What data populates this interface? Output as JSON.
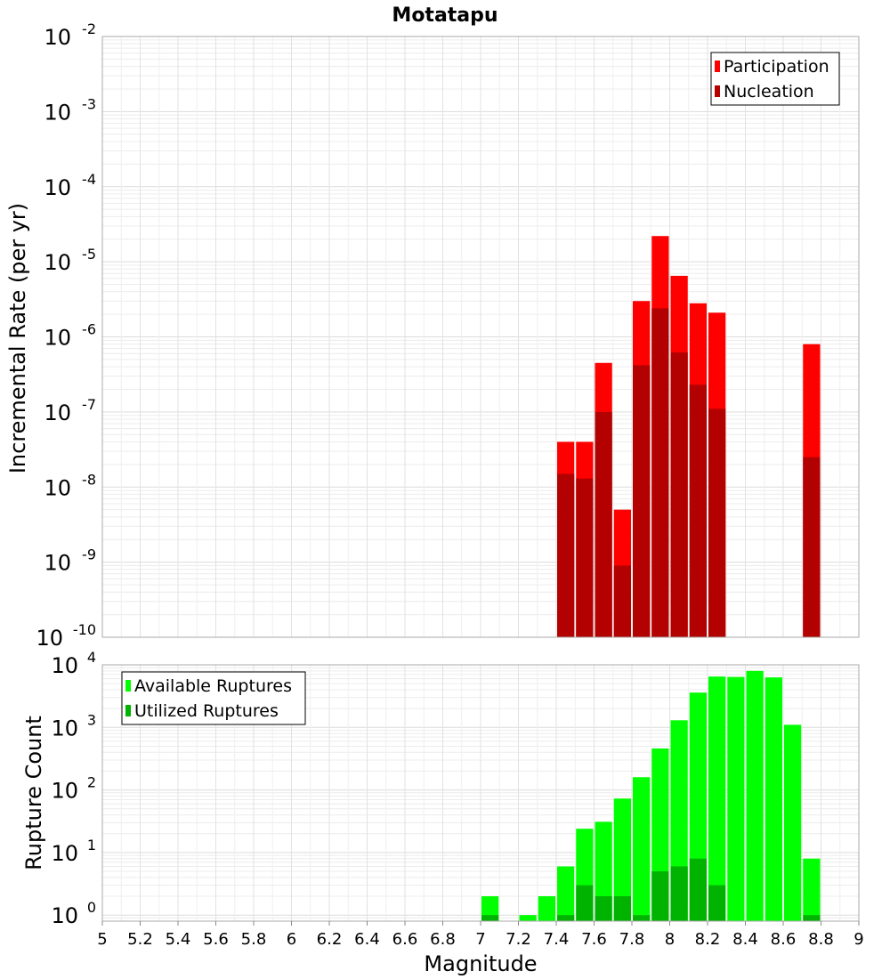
{
  "chart_data": [
    {
      "type": "bar",
      "title": "Motatapu",
      "ylabel": "Incremental Rate (per yr)",
      "xlabel": "",
      "y_scale": "log",
      "ylim": [
        1e-10,
        0.01
      ],
      "xlim": [
        5,
        9
      ],
      "grid": true,
      "legend_position": "top-right",
      "x": [
        7.45,
        7.55,
        7.65,
        7.75,
        7.85,
        7.95,
        8.05,
        8.15,
        8.25,
        8.75
      ],
      "series": [
        {
          "name": "Participation",
          "color": "#ff0000",
          "values": [
            4e-08,
            4e-08,
            4.5e-07,
            5e-09,
            3e-06,
            2.2e-05,
            6.5e-06,
            2.8e-06,
            2.1e-06,
            8e-07
          ]
        },
        {
          "name": "Nucleation",
          "color": "#b30000",
          "values": [
            1.5e-08,
            1.3e-08,
            1e-07,
            9e-10,
            4.2e-07,
            2.4e-06,
            6.2e-07,
            2.3e-07,
            1.1e-07,
            2.5e-08
          ]
        }
      ],
      "y_ticks": [
        {
          "base": "10",
          "exp": "-10",
          "value": 1e-10
        },
        {
          "base": "10",
          "exp": "-9",
          "value": 1e-09
        },
        {
          "base": "10",
          "exp": "-8",
          "value": 1e-08
        },
        {
          "base": "10",
          "exp": "-7",
          "value": 1e-07
        },
        {
          "base": "10",
          "exp": "-6",
          "value": 1e-06
        },
        {
          "base": "10",
          "exp": "-5",
          "value": 1e-05
        },
        {
          "base": "10",
          "exp": "-4",
          "value": 0.0001
        },
        {
          "base": "10",
          "exp": "-3",
          "value": 0.001
        },
        {
          "base": "10",
          "exp": "-2",
          "value": 0.01
        }
      ]
    },
    {
      "type": "bar",
      "title": "",
      "ylabel": "Rupture Count",
      "xlabel": "Magnitude",
      "y_scale": "log",
      "ylim": [
        0.8,
        10000
      ],
      "xlim": [
        5,
        9
      ],
      "grid": true,
      "legend_position": "top-left",
      "x": [
        7.05,
        7.25,
        7.35,
        7.45,
        7.55,
        7.65,
        7.75,
        7.85,
        7.95,
        8.05,
        8.15,
        8.25,
        8.35,
        8.45,
        8.55,
        8.65,
        8.75
      ],
      "series": [
        {
          "name": "Available Ruptures",
          "color": "#00ff00",
          "values": [
            2,
            1,
            2,
            6,
            24,
            31,
            73,
            160,
            460,
            1300,
            3600,
            6500,
            6400,
            8000,
            6300,
            1100,
            8
          ]
        },
        {
          "name": "Utilized Ruptures",
          "color": "#00b300",
          "values": [
            1,
            0,
            0,
            1,
            3,
            2,
            2,
            1,
            5,
            6,
            8,
            3,
            0,
            0,
            0,
            0,
            1
          ]
        }
      ],
      "y_ticks": [
        {
          "base": "10",
          "exp": "0",
          "value": 1
        },
        {
          "base": "10",
          "exp": "1",
          "value": 10
        },
        {
          "base": "10",
          "exp": "2",
          "value": 100
        },
        {
          "base": "10",
          "exp": "3",
          "value": 1000
        },
        {
          "base": "10",
          "exp": "4",
          "value": 10000
        }
      ],
      "x_ticks": [
        "5",
        "5.2",
        "5.4",
        "5.6",
        "5.8",
        "6",
        "6.2",
        "6.4",
        "6.6",
        "6.8",
        "7",
        "7.2",
        "7.4",
        "7.6",
        "7.8",
        "8",
        "8.2",
        "8.4",
        "8.6",
        "8.8",
        "9"
      ]
    }
  ]
}
